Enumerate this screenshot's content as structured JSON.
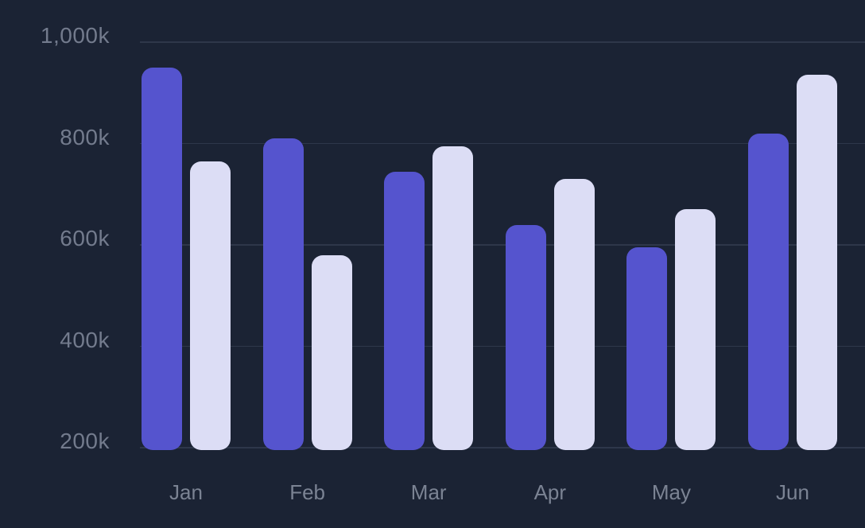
{
  "chart": {
    "background_color": "#1b2334",
    "grid_color": "#2e374a",
    "y_label_color": "#737b8d",
    "x_label_color": "#7b8393",
    "bar_primary_color": "#5554ce",
    "bar_secondary_color": "#dcddf5"
  },
  "chart_data": {
    "type": "bar",
    "title": "",
    "categories": [
      "Jan",
      "Feb",
      "Mar",
      "Apr",
      "May",
      "Jun"
    ],
    "series": [
      {
        "name": "series-1-indigo",
        "color": "#5554ce",
        "values": [
          950,
          810,
          745,
          640,
          595,
          820
        ]
      },
      {
        "name": "series-2-lavender",
        "color": "#dcddf5",
        "values": [
          765,
          580,
          795,
          730,
          670,
          935
        ]
      }
    ],
    "unit": "k",
    "y_axis": {
      "tick_labels": [
        "1,000k",
        "800k",
        "600k",
        "400k",
        "200k"
      ],
      "tick_values": [
        1000,
        800,
        600,
        400,
        200
      ],
      "min": 200,
      "max": 1000
    },
    "x_axis": {
      "tick_labels": [
        "Jan",
        "Feb",
        "Mar",
        "Apr",
        "May",
        "Jun"
      ]
    },
    "grid": "horizontal",
    "legend": "none"
  }
}
